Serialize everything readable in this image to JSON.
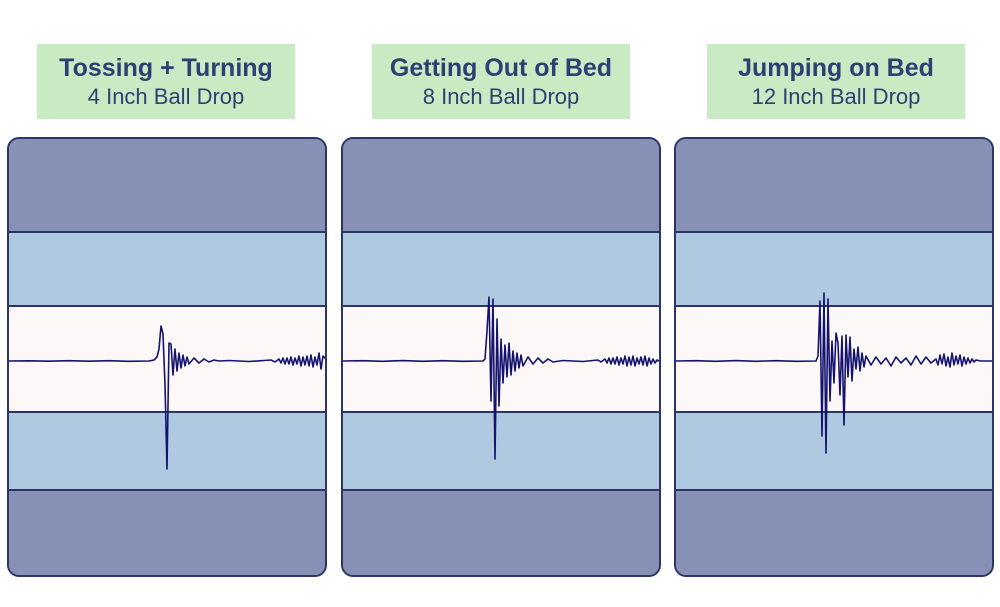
{
  "chart_data": [
    {
      "type": "line",
      "title": "Tossing + Turning",
      "subtitle": "4 Inch Ball Drop",
      "color": "#14146e",
      "series": [
        {
          "x": [
            0,
            20,
            40,
            60,
            80,
            100,
            120,
            140,
            145,
            148,
            150,
            152,
            154,
            156,
            158,
            160,
            162,
            164,
            166,
            168,
            170,
            172,
            174,
            176,
            178,
            180,
            185,
            190,
            195,
            200,
            205,
            210,
            220,
            240,
            255,
            262,
            266,
            270,
            272,
            274,
            276,
            278,
            280,
            282,
            284,
            286,
            288,
            290,
            292,
            294,
            296,
            298,
            300,
            302,
            304,
            306,
            308,
            310,
            312,
            314,
            316,
            318
          ],
          "y": [
            0,
            0.2,
            -0.2,
            0.3,
            -0.2,
            0.3,
            -0.3,
            0,
            1,
            4,
            12,
            35,
            27,
            -24,
            -108,
            18,
            17,
            -14,
            12,
            -10,
            8,
            -7,
            6,
            -5,
            4,
            -3,
            3,
            -2,
            2,
            -1,
            1,
            0,
            0.5,
            -0.5,
            0.5,
            1,
            -1,
            2,
            -2,
            3,
            -3,
            3,
            -3,
            4,
            -4,
            3,
            -3,
            5,
            -5,
            4,
            -4,
            5,
            -5,
            6,
            -6,
            4,
            -4,
            8,
            -8,
            5,
            3,
            0
          ]
        }
      ]
    },
    {
      "type": "line",
      "title": "Getting Out of Bed",
      "subtitle": "8 Inch Ball Drop",
      "color": "#14146e",
      "series": [
        {
          "x": [
            0,
            20,
            40,
            60,
            80,
            100,
            120,
            140,
            142,
            144,
            146,
            148,
            150,
            152,
            154,
            156,
            158,
            160,
            162,
            164,
            166,
            168,
            170,
            172,
            174,
            176,
            178,
            180,
            185,
            190,
            195,
            200,
            205,
            210,
            220,
            240,
            250,
            255,
            258,
            262,
            264,
            266,
            268,
            270,
            272,
            274,
            276,
            278,
            280,
            282,
            284,
            286,
            288,
            290,
            292,
            294,
            296,
            298,
            300,
            302,
            304,
            306,
            308,
            310,
            312,
            314,
            316
          ],
          "y": [
            0,
            0.3,
            -0.3,
            0.4,
            -0.3,
            0.3,
            -0.3,
            0,
            2,
            30,
            64,
            -40,
            62,
            -98,
            42,
            -45,
            22,
            -22,
            16,
            -16,
            18,
            -14,
            10,
            -10,
            8,
            -7,
            6,
            -5,
            4,
            -3,
            3,
            -2,
            2,
            -1,
            0.5,
            -0.5,
            0.5,
            1,
            -1,
            2,
            -2,
            3,
            -3,
            3,
            -3,
            4,
            -4,
            3,
            -3,
            5,
            -5,
            4,
            -4,
            5,
            -5,
            3,
            -3,
            4,
            -4,
            5,
            -5,
            3,
            -3,
            2,
            -2,
            1,
            0
          ]
        }
      ]
    },
    {
      "type": "line",
      "title": "Jumping on Bed",
      "subtitle": "12 Inch Ball Drop",
      "color": "#14146e",
      "series": [
        {
          "x": [
            0,
            20,
            40,
            60,
            80,
            100,
            120,
            140,
            142,
            144,
            146,
            148,
            150,
            152,
            154,
            156,
            158,
            160,
            162,
            164,
            166,
            168,
            170,
            172,
            174,
            176,
            178,
            180,
            182,
            184,
            186,
            188,
            190,
            195,
            200,
            205,
            210,
            215,
            220,
            225,
            230,
            235,
            240,
            245,
            250,
            255,
            260,
            262,
            264,
            266,
            268,
            270,
            272,
            274,
            276,
            278,
            280,
            282,
            284,
            286,
            288,
            290,
            292,
            294,
            296,
            298,
            300,
            305,
            310,
            316
          ],
          "y": [
            0,
            0.3,
            -0.3,
            0.4,
            -0.3,
            0.3,
            -0.3,
            0,
            5,
            60,
            -75,
            68,
            -92,
            62,
            -40,
            20,
            -22,
            28,
            18,
            -34,
            25,
            -64,
            26,
            -16,
            24,
            -20,
            12,
            -8,
            14,
            -10,
            8,
            -6,
            5,
            -4,
            4,
            -3,
            3,
            -5,
            4,
            -2,
            3,
            -4,
            5,
            -3,
            4,
            -2,
            2,
            -4,
            6,
            -3,
            7,
            -5,
            4,
            -6,
            8,
            -4,
            5,
            -3,
            6,
            -5,
            4,
            -3,
            3,
            -2,
            2,
            -1,
            1,
            0,
            0,
            0
          ]
        }
      ]
    }
  ]
}
